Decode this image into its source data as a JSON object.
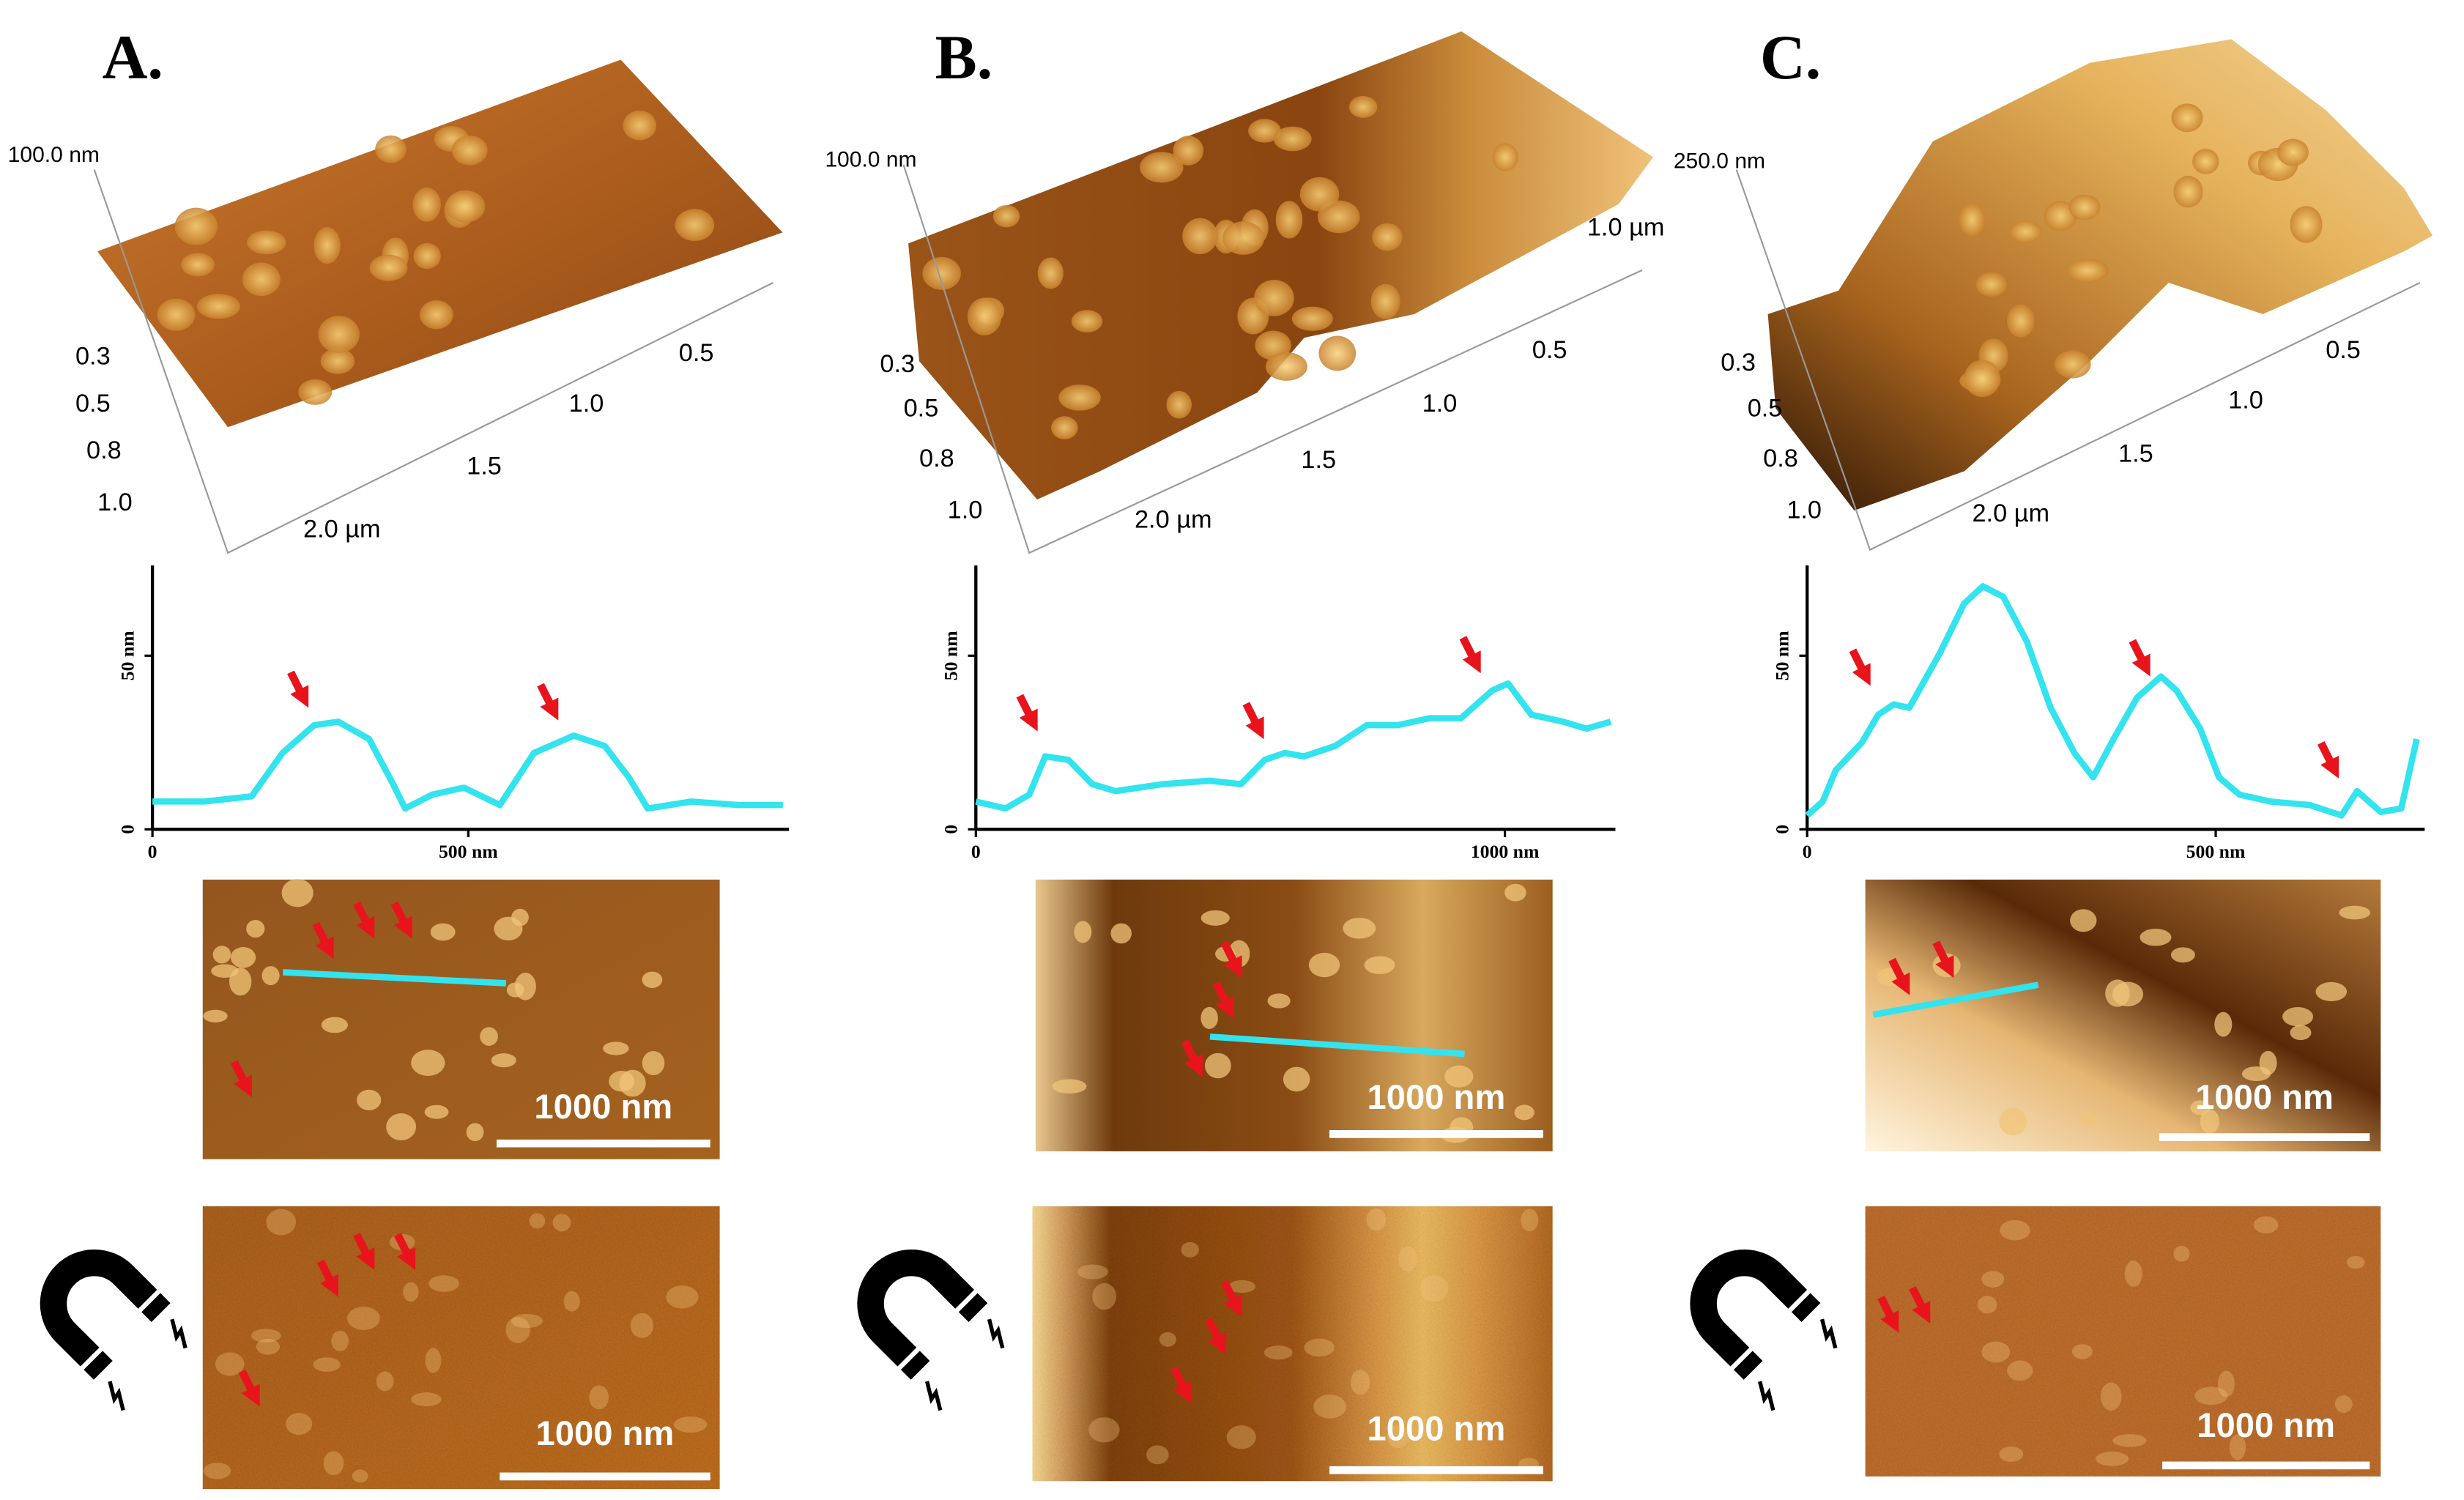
{
  "panels": [
    {
      "label": "A.",
      "surface": {
        "z_label": "100.0 nm",
        "side_ticks": [
          "0.3",
          "0.5",
          "0.8",
          "1.0"
        ],
        "front_ticks": [
          "2.0 µm",
          "1.5",
          "1.0",
          "0.5"
        ]
      },
      "scale_bar_top": "1000 nm",
      "scale_bar_bottom": "1000 nm"
    },
    {
      "label": "B.",
      "surface": {
        "z_label": "100.0 nm",
        "side_ticks": [
          "0.3",
          "0.5",
          "0.8",
          "1.0"
        ],
        "front_ticks": [
          "2.0 µm",
          "1.5",
          "1.0",
          "0.5",
          "1.0 µm"
        ]
      },
      "scale_bar_top": "1000 nm",
      "scale_bar_bottom": "1000 nm"
    },
    {
      "label": "C.",
      "surface": {
        "z_label": "250.0 nm",
        "side_ticks": [
          "0.3",
          "0.5",
          "0.8",
          "1.0"
        ],
        "front_ticks": [
          "2.0 µm",
          "1.5",
          "1.0",
          "0.5"
        ]
      },
      "scale_bar_top": "1000 nm",
      "scale_bar_bottom": "1000 nm"
    }
  ],
  "chart_data": [
    {
      "type": "line",
      "color": "#33e3ee",
      "x": [
        0,
        82,
        157,
        206,
        256,
        294,
        343,
        381,
        400,
        443,
        493,
        550,
        604,
        667,
        716,
        754,
        784,
        853,
        928,
        998
      ],
      "values": [
        8,
        8,
        9.5,
        22,
        30,
        31,
        26,
        13,
        6,
        10,
        12,
        7,
        22,
        27,
        24,
        15,
        6,
        8,
        7,
        7
      ],
      "xlim": [
        0,
        1000
      ],
      "ylim": [
        0,
        76
      ],
      "xticks": [
        0,
        {
          "value": 500,
          "label": "500 nm"
        }
      ],
      "yticks": [
        0,
        {
          "value": 50,
          "label": "50 nm"
        }
      ]
    },
    {
      "type": "line",
      "color": "#33e3ee",
      "x": [
        0,
        56,
        101,
        131,
        175,
        220,
        264,
        353,
        442,
        501,
        546,
        584,
        620,
        679,
        739,
        798,
        858,
        917,
        976,
        1006,
        1050,
        1110,
        1154,
        1200
      ],
      "values": [
        8,
        6,
        10,
        21,
        20,
        13,
        11,
        13,
        14,
        13,
        20,
        22,
        21,
        24,
        30,
        30,
        32,
        32,
        40,
        42,
        33,
        31,
        29,
        31
      ],
      "xlim": [
        0,
        1200
      ],
      "ylim": [
        0,
        76
      ],
      "xticks": [
        0,
        {
          "value": 1000,
          "label": "1000 nm"
        }
      ],
      "yticks": [
        0,
        {
          "value": 50,
          "label": "50 nm"
        }
      ]
    },
    {
      "type": "line",
      "color": "#33e3ee",
      "x": [
        0,
        19,
        35,
        67,
        87,
        106,
        125,
        163,
        192,
        215,
        240,
        269,
        298,
        327,
        350,
        375,
        404,
        433,
        452,
        481,
        504,
        529,
        567,
        615,
        654,
        673,
        702,
        727,
        746
      ],
      "values": [
        4,
        8,
        17,
        25,
        33,
        36,
        35,
        51,
        65,
        70,
        67,
        54,
        35,
        22,
        15,
        26,
        38,
        44,
        40,
        29,
        15,
        10,
        8,
        7,
        4,
        11,
        5,
        6,
        26
      ],
      "xlim": [
        0,
        750
      ],
      "ylim": [
        0,
        76
      ],
      "xticks": [
        0,
        {
          "value": 500,
          "label": "500 nm"
        }
      ],
      "yticks": [
        0,
        {
          "value": 50,
          "label": "50 nm"
        }
      ]
    }
  ]
}
